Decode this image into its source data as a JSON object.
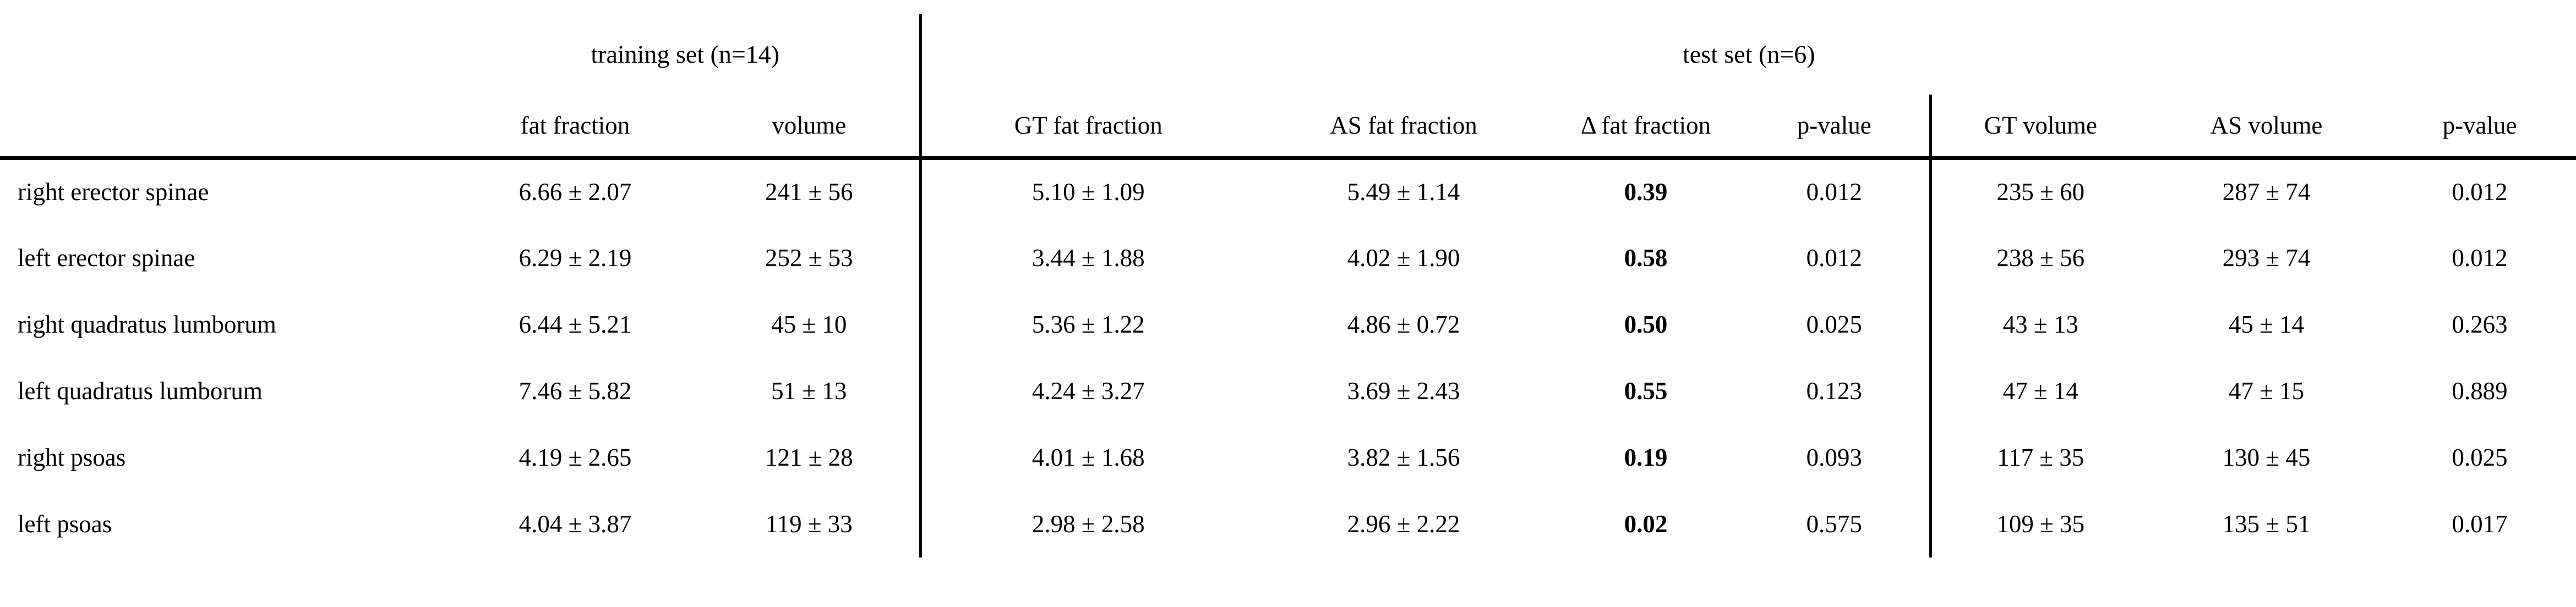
{
  "table": {
    "group_headers": {
      "training": "training set (n=14)",
      "test": "test set (n=6)"
    },
    "column_headers": {
      "muscle": "",
      "train_ff": "fat fraction",
      "train_vol": "volume",
      "gt_ff": "GT fat fraction",
      "as_ff": "AS fat fraction",
      "delta_ff": "Δ fat fraction",
      "p_ff": "p-value",
      "gt_vol": "GT volume",
      "as_vol": "AS volume",
      "p_vol": "p-value"
    },
    "rows": [
      {
        "muscle": "right erector spinae",
        "train_ff": "6.66 ± 2.07",
        "train_vol": "241 ± 56",
        "gt_ff": "5.10 ± 1.09",
        "as_ff": "5.49 ± 1.14",
        "delta_ff": "0.39",
        "p_ff": "0.012",
        "gt_vol": "235 ± 60",
        "as_vol": "287 ± 74",
        "p_vol": "0.012"
      },
      {
        "muscle": "left erector spinae",
        "train_ff": "6.29 ± 2.19",
        "train_vol": "252 ± 53",
        "gt_ff": "3.44 ± 1.88",
        "as_ff": "4.02 ± 1.90",
        "delta_ff": "0.58",
        "p_ff": "0.012",
        "gt_vol": "238 ± 56",
        "as_vol": "293 ± 74",
        "p_vol": "0.012"
      },
      {
        "muscle": "right quadratus lumborum",
        "train_ff": "6.44 ± 5.21",
        "train_vol": "45 ± 10",
        "gt_ff": "5.36 ± 1.22",
        "as_ff": "4.86 ± 0.72",
        "delta_ff": "0.50",
        "p_ff": "0.025",
        "gt_vol": "43 ± 13",
        "as_vol": "45 ± 14",
        "p_vol": "0.263"
      },
      {
        "muscle": "left quadratus lumborum",
        "train_ff": "7.46 ± 5.82",
        "train_vol": "51 ± 13",
        "gt_ff": "4.24 ± 3.27",
        "as_ff": "3.69 ± 2.43",
        "delta_ff": "0.55",
        "p_ff": "0.123",
        "gt_vol": "47 ± 14",
        "as_vol": "47 ± 15",
        "p_vol": "0.889"
      },
      {
        "muscle": "right psoas",
        "train_ff": "4.19 ± 2.65",
        "train_vol": "121 ± 28",
        "gt_ff": "4.01 ± 1.68",
        "as_ff": "3.82 ± 1.56",
        "delta_ff": "0.19",
        "p_ff": "0.093",
        "gt_vol": "117 ± 35",
        "as_vol": "130 ± 45",
        "p_vol": "0.025"
      },
      {
        "muscle": "left psoas",
        "train_ff": "4.04 ± 3.87",
        "train_vol": "119 ± 33",
        "gt_ff": "2.98 ± 2.58",
        "as_ff": "2.96 ± 2.22",
        "delta_ff": "0.02",
        "p_ff": "0.575",
        "gt_vol": "109 ± 35",
        "as_vol": "135 ± 51",
        "p_vol": "0.017"
      }
    ]
  }
}
